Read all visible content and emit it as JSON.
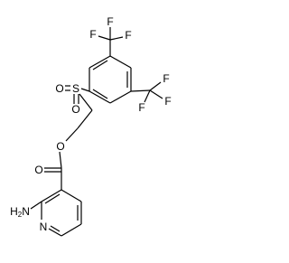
{
  "atoms": {
    "f_top_1": "F",
    "f_top_2": "F",
    "f_top_3": "F",
    "f_right_1": "F",
    "f_right_2": "F",
    "f_right_3": "F",
    "sulfur": "S",
    "o_sulfonyl_1": "O",
    "o_sulfonyl_2": "O",
    "o_ester": "O",
    "o_carbonyl": "O",
    "amine": {
      "h": "H",
      "sub": "2",
      "n": "N"
    },
    "n_ring": "N"
  }
}
